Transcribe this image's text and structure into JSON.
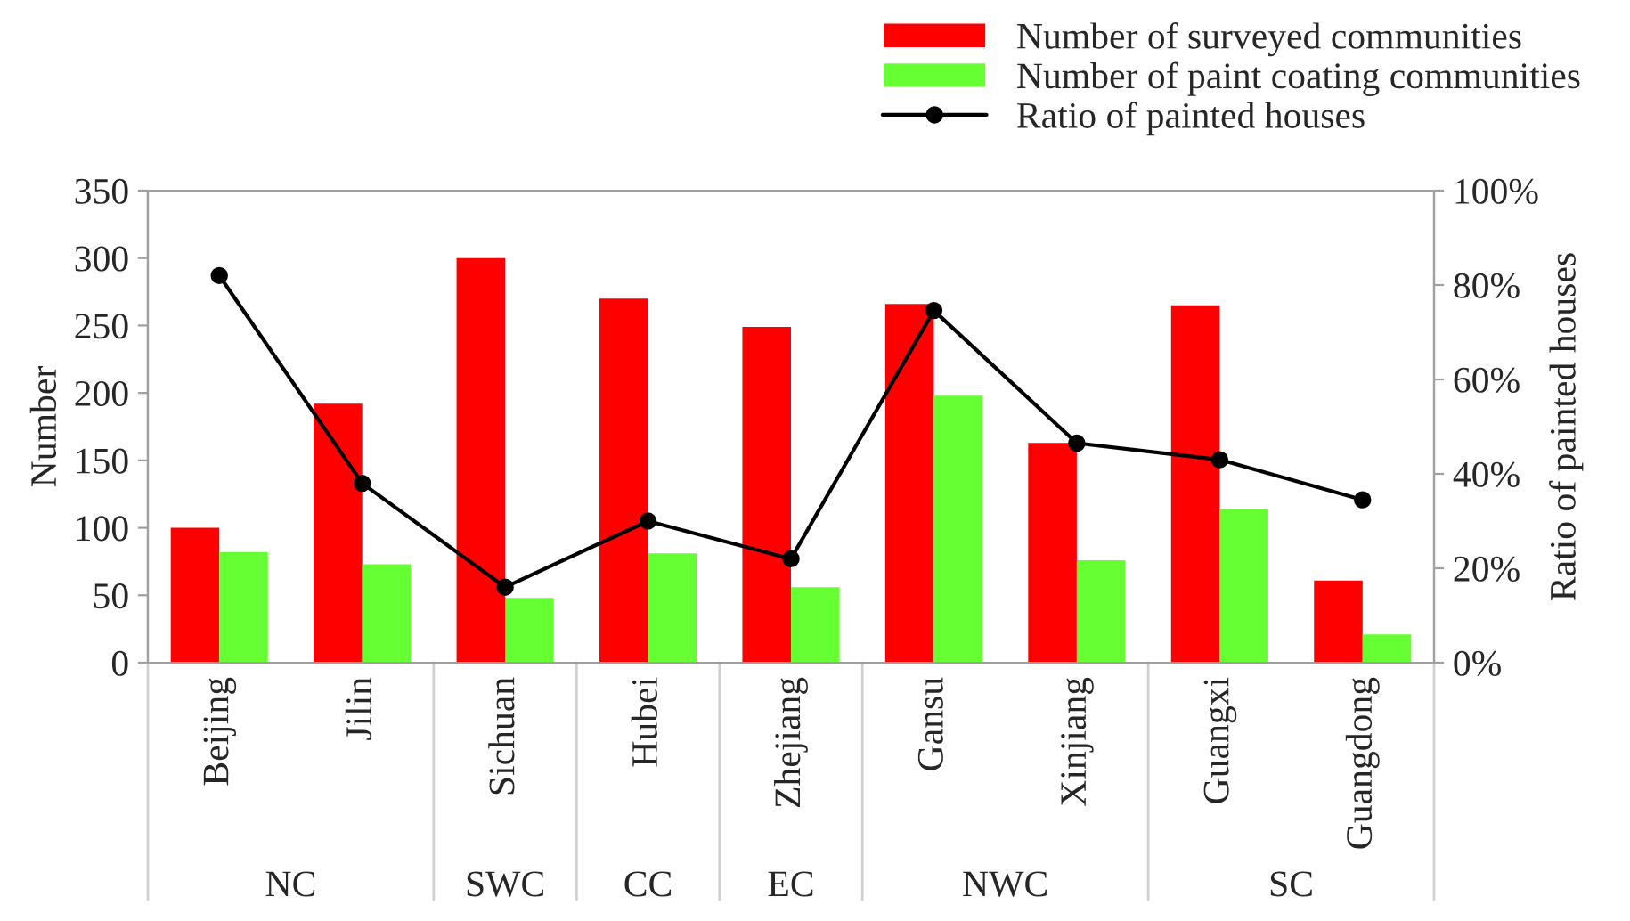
{
  "chart_data": {
    "type": "bar",
    "ylabel": "Number",
    "y2label": "Ratio of painted houses",
    "categories": [
      "Beijing",
      "Jilin",
      "Sichuan",
      "Hubei",
      "Zhejiang",
      "Gansu",
      "Xinjiang",
      "Guangxi",
      "Guangdong"
    ],
    "series": [
      {
        "name": "Number of surveyed communities",
        "color": "#ff0000",
        "values": [
          100,
          192,
          300,
          270,
          249,
          266,
          163,
          265,
          61
        ]
      },
      {
        "name": "Number of paint coating communities",
        "color": "#66ff33",
        "values": [
          82,
          73,
          48,
          81,
          56,
          198,
          76,
          114,
          21
        ]
      },
      {
        "name": "Ratio of painted houses",
        "type": "line",
        "axis": "y2",
        "color": "#000000",
        "marker": "circle",
        "values": [
          82,
          38,
          16,
          30,
          22,
          74.6,
          46.5,
          43,
          34.5
        ]
      }
    ],
    "ylim": [
      0,
      350
    ],
    "yticks": [
      0,
      50,
      100,
      150,
      200,
      250,
      300,
      350
    ],
    "y2lim": [
      0,
      100
    ],
    "y2ticks": [
      {
        "value": 0,
        "label": "0%"
      },
      {
        "value": 20,
        "label": "20%"
      },
      {
        "value": 40,
        "label": "40%"
      },
      {
        "value": 60,
        "label": "60%"
      },
      {
        "value": 80,
        "label": "80%"
      },
      {
        "value": 100,
        "label": "100%"
      }
    ],
    "annotations": [
      "NC",
      "SWC",
      "CC",
      "EC",
      "NWC",
      "SC"
    ],
    "legend": "top right",
    "grid": false
  }
}
